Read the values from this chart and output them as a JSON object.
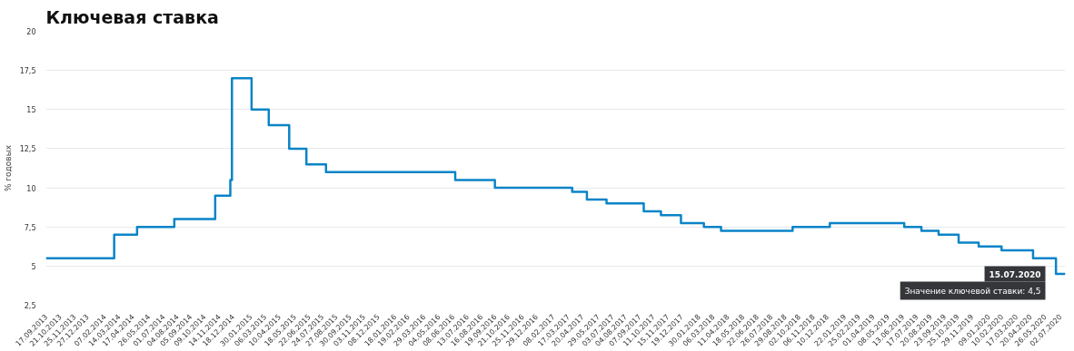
{
  "chart_data": {
    "type": "step",
    "title": "Ключевая ставка",
    "ylabel": "% годовых",
    "x": [
      "2013-09-17",
      "2014-03-03",
      "2014-04-28",
      "2014-07-28",
      "2014-11-05",
      "2014-12-12",
      "2014-12-16",
      "2015-02-02",
      "2015-03-16",
      "2015-05-05",
      "2015-06-16",
      "2015-08-03",
      "2016-06-14",
      "2016-09-19",
      "2017-03-27",
      "2017-05-02",
      "2017-06-19",
      "2017-09-18",
      "2017-10-30",
      "2017-12-18",
      "2018-02-12",
      "2018-03-26",
      "2018-09-17",
      "2018-12-17",
      "2019-06-17",
      "2019-07-29",
      "2019-09-09",
      "2019-10-28",
      "2019-12-16",
      "2020-02-10",
      "2020-04-27",
      "2020-06-22",
      "2020-07-15"
    ],
    "series": [
      {
        "color": "#0a84c8",
        "values": [
          5.5,
          7,
          7.5,
          8,
          9.5,
          10.5,
          17,
          15,
          14,
          12.5,
          11.5,
          11,
          10.5,
          10,
          9.75,
          9.25,
          9,
          8.5,
          8.25,
          7.75,
          7.5,
          7.25,
          7.5,
          7.75,
          7.5,
          7.25,
          7,
          6.5,
          6.25,
          6,
          5.5,
          4.5,
          4.5
        ]
      }
    ],
    "xlim": [
      "2013-09-17",
      "2020-07-15"
    ],
    "xticks": [
      {
        "value": "2013-09-17",
        "label": "17.09.2013"
      },
      {
        "value": "2013-10-21",
        "label": "21.10.2013"
      },
      {
        "value": "2013-11-25",
        "label": "25.11.2013"
      },
      {
        "value": "2013-12-27",
        "label": "27.12.2013"
      },
      {
        "value": "2014-02-07",
        "label": "07.02.2014"
      },
      {
        "value": "2014-03-14",
        "label": "14.03.2014"
      },
      {
        "value": "2014-04-17",
        "label": "17.04.2014"
      },
      {
        "value": "2014-05-26",
        "label": "26.05.2014"
      },
      {
        "value": "2014-07-01",
        "label": "01.07.2014"
      },
      {
        "value": "2014-08-04",
        "label": "04.08.2014"
      },
      {
        "value": "2014-09-05",
        "label": "05.09.2014"
      },
      {
        "value": "2014-10-09",
        "label": "09.10.2014"
      },
      {
        "value": "2014-11-14",
        "label": "14.11.2014"
      },
      {
        "value": "2014-12-18",
        "label": "18.12.2014"
      },
      {
        "value": "2015-01-30",
        "label": "30.01.2015"
      },
      {
        "value": "2015-03-06",
        "label": "06.03.2015"
      },
      {
        "value": "2015-04-10",
        "label": "10.04.2015"
      },
      {
        "value": "2015-05-18",
        "label": "18.05.2015"
      },
      {
        "value": "2015-06-22",
        "label": "22.06.2015"
      },
      {
        "value": "2015-07-24",
        "label": "24.07.2015"
      },
      {
        "value": "2015-08-27",
        "label": "27.08.2015"
      },
      {
        "value": "2015-09-30",
        "label": "30.09.2015"
      },
      {
        "value": "2015-11-03",
        "label": "03.11.2015"
      },
      {
        "value": "2015-12-08",
        "label": "08.12.2015"
      },
      {
        "value": "2016-01-18",
        "label": "18.01.2016"
      },
      {
        "value": "2016-02-19",
        "label": "19.02.2016"
      },
      {
        "value": "2016-03-29",
        "label": "29.03.2016"
      },
      {
        "value": "2016-05-04",
        "label": "04.05.2016"
      },
      {
        "value": "2016-06-08",
        "label": "08.06.2016"
      },
      {
        "value": "2016-07-13",
        "label": "13.07.2016"
      },
      {
        "value": "2016-08-16",
        "label": "16.08.2016"
      },
      {
        "value": "2016-09-19",
        "label": "19.09.2016"
      },
      {
        "value": "2016-10-21",
        "label": "21.10.2016"
      },
      {
        "value": "2016-11-25",
        "label": "25.11.2016"
      },
      {
        "value": "2016-12-29",
        "label": "29.12.2016"
      },
      {
        "value": "2017-02-08",
        "label": "08.02.2017"
      },
      {
        "value": "2017-03-17",
        "label": "17.03.2017"
      },
      {
        "value": "2017-04-20",
        "label": "20.04.2017"
      },
      {
        "value": "2017-05-29",
        "label": "29.05.2017"
      },
      {
        "value": "2017-07-03",
        "label": "03.07.2017"
      },
      {
        "value": "2017-08-04",
        "label": "04.08.2017"
      },
      {
        "value": "2017-09-07",
        "label": "07.09.2017"
      },
      {
        "value": "2017-10-11",
        "label": "11.10.2017"
      },
      {
        "value": "2017-11-15",
        "label": "15.11.2017"
      },
      {
        "value": "2017-12-19",
        "label": "19.12.2017"
      },
      {
        "value": "2018-01-30",
        "label": "30.01.2018"
      },
      {
        "value": "2018-03-06",
        "label": "06.03.2018"
      },
      {
        "value": "2018-04-11",
        "label": "11.04.2018"
      },
      {
        "value": "2018-05-18",
        "label": "18.05.2018"
      },
      {
        "value": "2018-06-22",
        "label": "22.06.2018"
      },
      {
        "value": "2018-07-26",
        "label": "26.07.2018"
      },
      {
        "value": "2018-08-29",
        "label": "29.08.2018"
      },
      {
        "value": "2018-10-02",
        "label": "02.10.2018"
      },
      {
        "value": "2018-11-06",
        "label": "06.11.2018"
      },
      {
        "value": "2018-12-10",
        "label": "10.12.2018"
      },
      {
        "value": "2019-01-22",
        "label": "22.01.2019"
      },
      {
        "value": "2019-02-25",
        "label": "25.02.2019"
      },
      {
        "value": "2019-04-01",
        "label": "01.04.2019"
      },
      {
        "value": "2019-05-08",
        "label": "08.05.2019"
      },
      {
        "value": "2019-06-13",
        "label": "13.06.2019"
      },
      {
        "value": "2019-07-17",
        "label": "17.07.2019"
      },
      {
        "value": "2019-08-20",
        "label": "20.08.2019"
      },
      {
        "value": "2019-09-23",
        "label": "23.09.2019"
      },
      {
        "value": "2019-10-25",
        "label": "25.10.2019"
      },
      {
        "value": "2019-11-29",
        "label": "29.11.2019"
      },
      {
        "value": "2020-01-09",
        "label": "09.01.2020"
      },
      {
        "value": "2020-02-10",
        "label": "10.02.2020"
      },
      {
        "value": "2020-03-17",
        "label": "17.03.2020"
      },
      {
        "value": "2020-04-20",
        "label": "20.04.2020"
      },
      {
        "value": "2020-05-26",
        "label": "26.05.2020"
      },
      {
        "value": "2020-07-02",
        "label": "02.07.2020"
      }
    ],
    "ylim": [
      2.5,
      20
    ],
    "yticks": [
      {
        "value": 2.5,
        "label": "2,5"
      },
      {
        "value": 5,
        "label": "5"
      },
      {
        "value": 7.5,
        "label": "7,5"
      },
      {
        "value": 10,
        "label": "10"
      },
      {
        "value": 12.5,
        "label": "12,5"
      },
      {
        "value": 15,
        "label": "15"
      },
      {
        "value": 17.5,
        "label": "17,5"
      },
      {
        "value": 20,
        "label": "20"
      }
    ],
    "grid": "y",
    "annotations": [
      "15.07.2020",
      "Значение ключевой ставки: 4,5"
    ]
  }
}
